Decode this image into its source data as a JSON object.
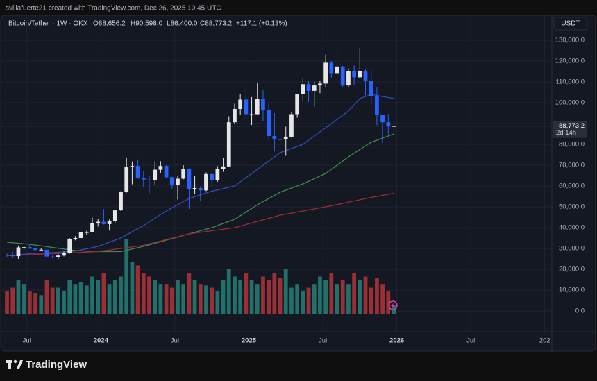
{
  "watermark": "svillafuerte21 created with TradingView.com, Dec 26, 2025 10:45 UTC",
  "header": {
    "symbol": "Bitcoin/Tether · 1W · OKX",
    "open": "O88,656.2",
    "high": "H90,598.0",
    "low": "L86,400.0",
    "close": "C88,773.2",
    "change": "+117.1 (+0.13%)"
  },
  "currency": "USDT",
  "brand": "TradingView",
  "chart_data": {
    "type": "candlestick",
    "up_color": "#e6e6e6",
    "down_color": "#2962ff",
    "x": [
      0,
      2,
      4,
      6,
      8,
      10,
      12,
      14,
      16,
      18,
      20,
      22,
      24,
      26,
      28,
      30,
      32,
      34,
      36,
      38,
      40,
      42,
      44,
      46,
      48,
      50,
      52,
      54,
      56,
      58,
      60,
      62,
      64,
      66,
      68,
      70,
      72,
      74,
      76,
      78,
      80,
      82,
      84,
      86,
      88,
      90,
      92,
      94,
      96,
      98,
      100,
      102,
      104,
      106,
      108,
      110,
      112,
      114,
      116,
      118,
      120,
      122,
      124,
      126,
      128,
      130,
      132,
      134,
      136
    ],
    "open": [
      27000,
      26900,
      26300,
      30500,
      30600,
      30300,
      29300,
      29400,
      26100,
      25900,
      26600,
      27900,
      34500,
      35000,
      37700,
      37800,
      42000,
      42800,
      41700,
      43000,
      48300,
      57000,
      69000,
      69600,
      64000,
      63100,
      62800,
      67800,
      69600,
      64200,
      60400,
      63500,
      68200,
      58700,
      59000,
      57900,
      65700,
      62800,
      68000,
      69400,
      90600,
      97000,
      101500,
      94500,
      94500,
      102000,
      96500,
      84000,
      82500,
      82400,
      83700,
      94500,
      104000,
      108900,
      105700,
      108300,
      109200,
      119200,
      114200,
      117400,
      108300,
      115300,
      112200,
      115000,
      110500,
      103000,
      94000,
      90600,
      88656.2
    ],
    "high": [
      27600,
      28400,
      31400,
      31400,
      31800,
      30400,
      30200,
      29600,
      26600,
      27500,
      28600,
      35000,
      35900,
      38000,
      38500,
      44800,
      44200,
      48900,
      43900,
      48600,
      57500,
      73700,
      71800,
      72700,
      67000,
      64700,
      71900,
      71900,
      70000,
      64500,
      64800,
      70000,
      68500,
      64900,
      59800,
      66500,
      66000,
      69500,
      73600,
      93500,
      99500,
      104000,
      108300,
      102700,
      109600,
      106000,
      99500,
      95000,
      88800,
      88500,
      95700,
      104000,
      111900,
      110700,
      110500,
      110600,
      123200,
      120000,
      124500,
      117700,
      116500,
      117900,
      126200,
      115900,
      116400,
      107500,
      94100,
      94600,
      90598.0
    ],
    "low": [
      25800,
      25400,
      25000,
      29500,
      29700,
      28900,
      28700,
      25300,
      25300,
      24900,
      26200,
      27500,
      33900,
      34800,
      36500,
      37700,
      40500,
      41500,
      38600,
      42200,
      48000,
      56800,
      60800,
      63500,
      59600,
      56500,
      60700,
      66000,
      64000,
      58400,
      53500,
      63200,
      49000,
      56000,
      52600,
      57500,
      59800,
      62000,
      66800,
      69300,
      90000,
      94000,
      92200,
      89300,
      94000,
      91200,
      82200,
      76600,
      81200,
      74500,
      83200,
      92800,
      100700,
      100400,
      98200,
      104600,
      107500,
      112000,
      112600,
      107300,
      107300,
      108700,
      111500,
      103500,
      99000,
      89200,
      80600,
      84800,
      86400.0
    ],
    "close": [
      26900,
      26300,
      30500,
      30600,
      30300,
      29300,
      29400,
      26100,
      25900,
      26600,
      27900,
      34500,
      35000,
      37700,
      37800,
      42000,
      42800,
      41700,
      43000,
      48300,
      57000,
      69000,
      69600,
      64000,
      63100,
      62800,
      67800,
      69600,
      64200,
      60400,
      63500,
      68200,
      58700,
      59000,
      57900,
      65700,
      62800,
      68000,
      69400,
      90600,
      97000,
      101500,
      94500,
      94500,
      102000,
      96500,
      84000,
      82500,
      82400,
      83700,
      94500,
      104000,
      108900,
      105700,
      108300,
      109200,
      119200,
      114200,
      117400,
      108300,
      115300,
      112200,
      115000,
      110500,
      103000,
      94000,
      90600,
      88656.2,
      88773.2
    ],
    "last_price_label": "88,773.2",
    "countdown": "2d 14h",
    "lines": [
      {
        "color": "#2f4fb5",
        "x": [
          0,
          8,
          16,
          24,
          32,
          40,
          48,
          56,
          64,
          72,
          80,
          88,
          96,
          104,
          112,
          120,
          124,
          128,
          136
        ],
        "values": [
          26500,
          27500,
          28000,
          28700,
          31000,
          35000,
          41000,
          48000,
          54000,
          57500,
          60000,
          68000,
          76000,
          80000,
          88000,
          96000,
          102000,
          104000,
          102000
        ]
      },
      {
        "color": "#3f8a4a",
        "x": [
          0,
          8,
          16,
          24,
          32,
          40,
          48,
          56,
          64,
          72,
          80,
          88,
          96,
          104,
          112,
          120,
          128,
          136
        ],
        "values": [
          33000,
          32000,
          30500,
          29000,
          28500,
          28500,
          31000,
          34000,
          37000,
          40000,
          44000,
          51000,
          57000,
          61000,
          66000,
          74000,
          81000,
          85000
        ]
      },
      {
        "color": "#a0283a",
        "x": [
          0,
          16,
          32,
          48,
          64,
          80,
          96,
          112,
          128,
          136
        ],
        "values": [
          26500,
          27500,
          28500,
          31500,
          37000,
          40000,
          46000,
          50000,
          54500,
          56500
        ]
      }
    ],
    "volume": {
      "up_color": "#22706a",
      "down_color": "#9b2f36",
      "ylim": [
        0,
        100
      ],
      "values": [
        30,
        35,
        45,
        40,
        30,
        28,
        25,
        45,
        35,
        35,
        30,
        45,
        40,
        42,
        38,
        50,
        45,
        55,
        40,
        45,
        50,
        100,
        70,
        65,
        55,
        50,
        45,
        40,
        40,
        35,
        45,
        40,
        55,
        45,
        40,
        38,
        35,
        30,
        45,
        60,
        50,
        45,
        55,
        45,
        40,
        50,
        45,
        55,
        48,
        60,
        35,
        40,
        30,
        35,
        40,
        50,
        45,
        55,
        40,
        45,
        40,
        55,
        45,
        50,
        35,
        48,
        40,
        30,
        12
      ]
    },
    "xlim": [
      -0.5,
      191.5
    ],
    "ylim": [
      -10000,
      136000
    ],
    "xticks": [
      {
        "value": 7,
        "label": "Jul"
      },
      {
        "value": 33,
        "label": "2024"
      },
      {
        "value": 59,
        "label": "Jul"
      },
      {
        "value": 85,
        "label": "2025"
      },
      {
        "value": 111,
        "label": "Jul"
      },
      {
        "value": 137,
        "label": "2026"
      },
      {
        "value": 163,
        "label": "Jul"
      },
      {
        "value": 189,
        "label": "202"
      }
    ],
    "yticks": [
      {
        "value": 0,
        "label": "0.0"
      },
      {
        "value": 10000,
        "label": "10,000.0"
      },
      {
        "value": 20000,
        "label": "20,000.0"
      },
      {
        "value": 30000,
        "label": "30,000.0"
      },
      {
        "value": 40000,
        "label": "40,000.0"
      },
      {
        "value": 50000,
        "label": "50,000.0"
      },
      {
        "value": 60000,
        "label": "60,000.0"
      },
      {
        "value": 70000,
        "label": "70,000.0"
      },
      {
        "value": 80000,
        "label": "80,000.0"
      },
      {
        "value": 90000,
        "label": "90,000.0"
      },
      {
        "value": 100000,
        "label": "100,000.0"
      },
      {
        "value": 110000,
        "label": "110,000.0"
      },
      {
        "value": 120000,
        "label": "120,000.0"
      },
      {
        "value": 130000,
        "label": "130,000.0"
      }
    ]
  }
}
